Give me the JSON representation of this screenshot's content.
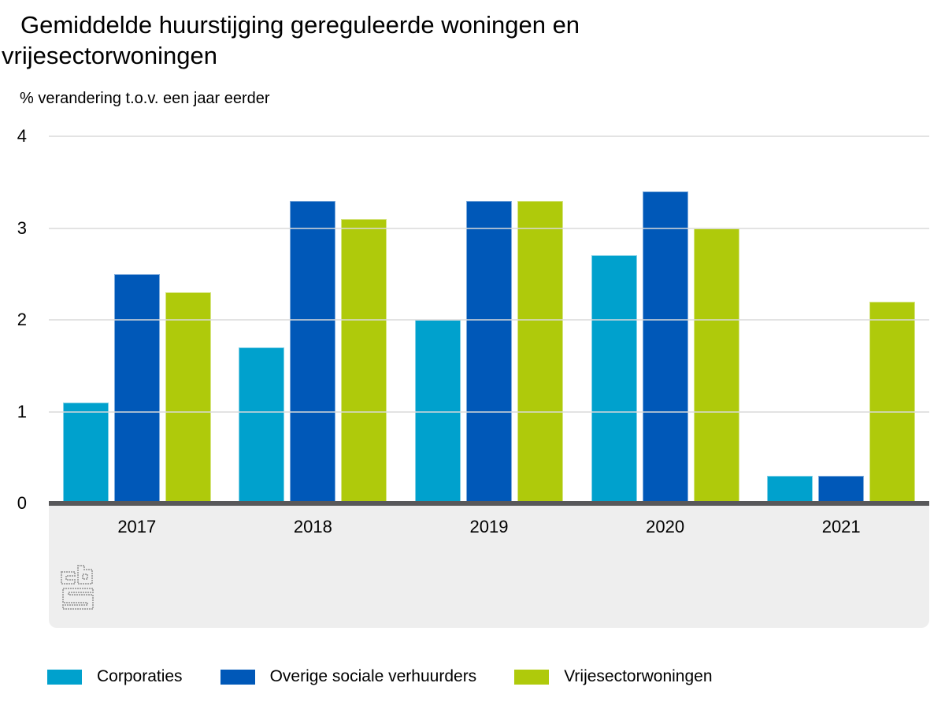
{
  "title": "Gemiddelde huurstijging gereguleerde woningen en vrijesectorwoningen",
  "subtitle": "% verandering t.o.v. een jaar eerder",
  "colors": {
    "corporaties": "#00a1cd",
    "overige_sociale_verhuurders": "#0058b8",
    "vrijesectorwoningen": "#afca0b",
    "zero_line": "#58585a",
    "gridline": "#d9d9d9",
    "footer_band": "#eeeeee",
    "logo_grey": "#a8a8a8"
  },
  "logo": {
    "name": "cbs-logo"
  },
  "chart_data": {
    "type": "bar",
    "title": "Gemiddelde huurstijging gereguleerde woningen en vrijesectorwoningen",
    "subtitle": "% verandering t.o.v. een jaar eerder",
    "xlabel": "",
    "ylabel": "% verandering t.o.v. een jaar eerder",
    "categories": [
      "2017",
      "2018",
      "2019",
      "2020",
      "2021"
    ],
    "series": [
      {
        "name": "Corporaties",
        "color": "#00a1cd",
        "values": [
          1.1,
          1.7,
          2.0,
          2.7,
          0.3
        ]
      },
      {
        "name": "Overige sociale verhuurders",
        "color": "#0058b8",
        "values": [
          2.5,
          3.3,
          3.3,
          3.4,
          0.3
        ]
      },
      {
        "name": "Vrijesectorwoningen",
        "color": "#afca0b",
        "values": [
          2.3,
          3.1,
          3.3,
          3.0,
          2.2
        ]
      }
    ],
    "ylim": [
      0,
      4
    ],
    "yticks": [
      0,
      1,
      2,
      3,
      4
    ],
    "grid": true,
    "legend_position": "bottom"
  }
}
